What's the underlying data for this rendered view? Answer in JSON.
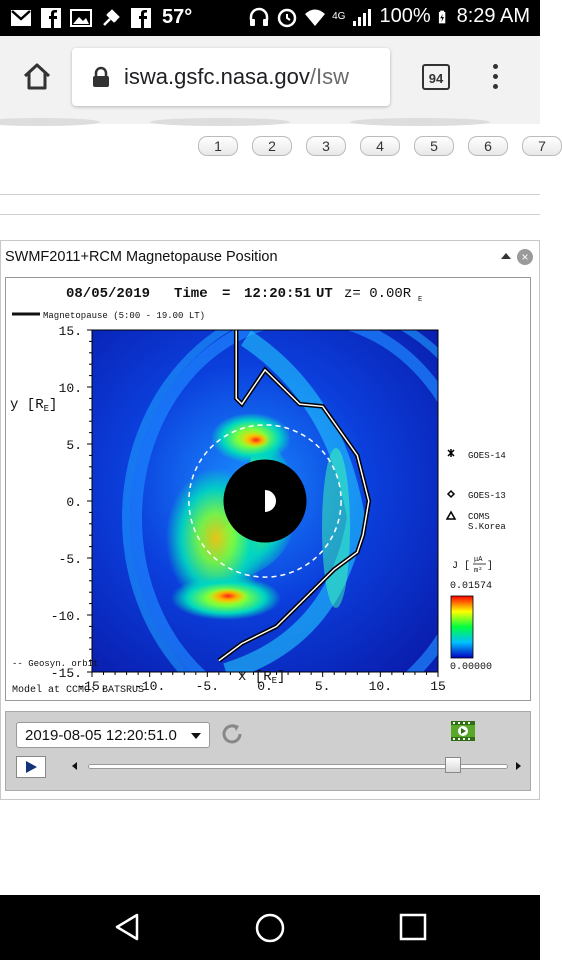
{
  "status_bar": {
    "temperature": "57°",
    "network": "4G",
    "battery": "100%",
    "time": "8:29 AM",
    "icons": [
      "gmail-icon",
      "facebook-icon",
      "image-icon",
      "bug-icon",
      "facebook-icon",
      "headphones-icon",
      "alarm-icon",
      "wifi-icon",
      "signal-icon",
      "battery-icon"
    ]
  },
  "browser": {
    "url_host": "iswa.gsfc.nasa.gov",
    "url_path": "/Isw",
    "tab_count": "94"
  },
  "pager": [
    "1",
    "2",
    "3",
    "4",
    "5",
    "6",
    "7"
  ],
  "widget": {
    "title": "SWMF2011+RCM Magnetopause Position",
    "close_label": "×",
    "player": {
      "date_value": "2019-08-05 12:20:51.0",
      "slider_fraction": 0.87
    }
  },
  "chart_data": {
    "type": "heatmap",
    "header_date": "08/05/2019",
    "header_time_label": "Time",
    "header_eq": "=",
    "header_time": "12:20:51",
    "header_ut": "UT",
    "header_z": "z= 0.00R",
    "header_z_sub": "E",
    "legend_label": "Magnetopause (5:00 - 19.00 LT)",
    "xlabel": "x [R",
    "xlabel_sub": "E",
    "xlabel_end": "]",
    "ylabel": "y [R",
    "ylabel_sub": "E",
    "ylabel_end": "]",
    "xlim": [
      -15,
      15
    ],
    "ylim": [
      -15,
      15
    ],
    "x_ticks": [
      "-15.",
      "-10.",
      "-5.",
      "0.",
      "5.",
      "10.",
      "15"
    ],
    "y_ticks": [
      "15.",
      "10.",
      "5.",
      "0.",
      "-5.",
      "-10.",
      "-15."
    ],
    "geosync_label": "-- Geosyn. orbit",
    "model_label": "Model at CCMC: BATSRUS",
    "colorbar_label": "J [",
    "colorbar_unit_num": "μA",
    "colorbar_unit_den": "m²",
    "colorbar_max": "0.01574",
    "colorbar_min": "0.00000",
    "satellites": [
      {
        "name": "GOES-14",
        "marker": "star"
      },
      {
        "name": "GOES-13",
        "marker": "diamond"
      },
      {
        "name": "COMS",
        "name2": "S.Korea",
        "marker": "triangle"
      }
    ],
    "magnetopause": [
      [
        -2.5,
        15
      ],
      [
        -2.5,
        9
      ],
      [
        -2.0,
        8.5
      ],
      [
        0,
        11.5
      ],
      [
        3,
        8.5
      ],
      [
        5,
        8.3
      ],
      [
        8,
        4
      ],
      [
        9,
        0
      ],
      [
        8.5,
        -3
      ],
      [
        8,
        -4.5
      ],
      [
        6,
        -6
      ],
      [
        3,
        -9
      ],
      [
        1,
        -11
      ],
      [
        -2,
        -12.5
      ],
      [
        -4,
        -14
      ]
    ],
    "geosync_radius": 6.6
  }
}
